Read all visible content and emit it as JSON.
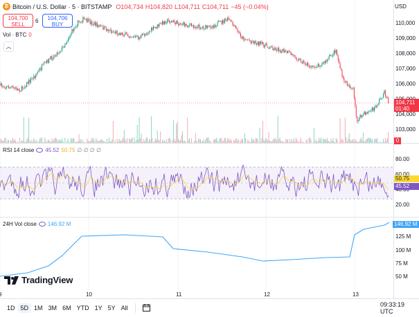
{
  "symbol": {
    "title": "Bitcoin / U.S. Dollar · 5 · BITSTAMP",
    "icon": "bitcoin-icon"
  },
  "ohlc": {
    "o": "O104,734",
    "h": "H104,820",
    "l": "L104,711",
    "c": "C104,711",
    "chg": "−45 (−0.04%)"
  },
  "trade": {
    "sell_price": "104,700",
    "sell_label": "SELL",
    "spread": "6",
    "buy_price": "104,706",
    "buy_label": "BUY"
  },
  "volume": {
    "label": "Vol · BTC",
    "value": "0",
    "tag": "0"
  },
  "currency": "USD",
  "price_axis": [
    "110,000",
    "109,000",
    "108,000",
    "107,000",
    "106,000",
    "105,000",
    "104,000",
    "103,000"
  ],
  "last_price": {
    "value": "104,711",
    "countdown": "01:40"
  },
  "rsi": {
    "label": "RSI 14 close",
    "value1": "45.52",
    "value2": "50.75",
    "extras": "∅ ∅ ∅ ∅",
    "ticks": [
      "80.00",
      "60.00",
      "40.00",
      "20.00"
    ],
    "tag1": "50.75",
    "tag2": "45.52"
  },
  "vol24": {
    "label": "24H Vol close",
    "value": "146.92 M",
    "ticks": [
      "125 M",
      "100 M",
      "75 M",
      "50 M"
    ],
    "tag": "146.92 M"
  },
  "time_axis": [
    "9",
    "10",
    "11",
    "12",
    "13"
  ],
  "logo": "TradingView",
  "timeframes": [
    "1D",
    "5D",
    "1M",
    "3M",
    "6M",
    "YTD",
    "1Y",
    "5Y",
    "All"
  ],
  "active_timeframe": "5D",
  "clock": "09:33:19 UTC",
  "colors": {
    "up": "#089981",
    "down": "#f23645",
    "rsi": "#7e57c2",
    "rsi_ma": "#fdd835",
    "vol24": "#42a5f5",
    "accent": "#2962ff"
  }
}
